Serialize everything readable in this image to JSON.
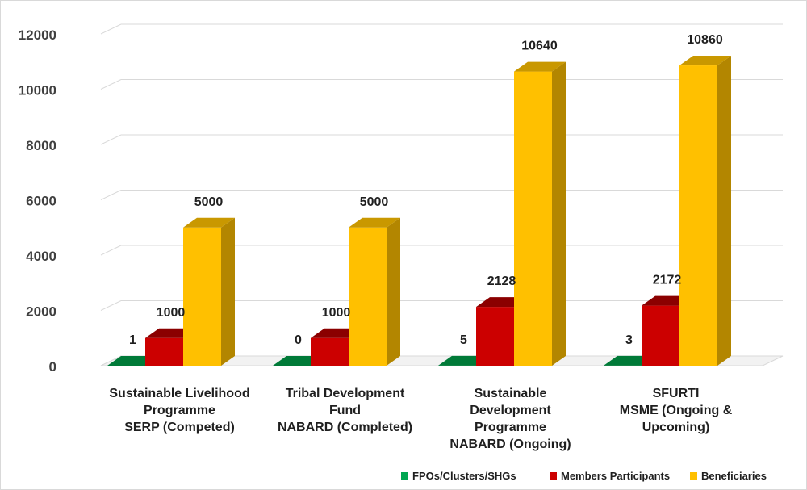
{
  "chart_data": {
    "type": "bar",
    "title": "",
    "xlabel": "",
    "ylabel": "",
    "ylim": [
      0,
      12000
    ],
    "yticks": [
      0,
      2000,
      4000,
      6000,
      8000,
      10000,
      12000
    ],
    "grid": true,
    "legend_position": "bottom-right",
    "categories": [
      [
        "Sustainable Livelihood",
        "Programme",
        "SERP (Competed)"
      ],
      [
        "Tribal Development",
        "Fund",
        "NABARD (Completed)"
      ],
      [
        "Sustainable",
        "Development",
        "Programme",
        "NABARD (Ongoing)"
      ],
      [
        "SFURTI",
        "MSME (Ongoing &",
        "Upcoming)"
      ]
    ],
    "series": [
      {
        "name": "FPOs/Clusters/SHGs",
        "values": [
          1,
          0,
          5,
          3
        ],
        "color": "#00a651",
        "side": "#00843f",
        "top": "#007a38"
      },
      {
        "name": "Members Participants",
        "values": [
          1000,
          1000,
          2128,
          2172
        ],
        "color": "#cc0000",
        "side": "#990000",
        "top": "#8b0000"
      },
      {
        "name": "Beneficiaries",
        "values": [
          5000,
          5000,
          10640,
          10860
        ],
        "color": "#ffc000",
        "side": "#b38600",
        "top": "#c99800"
      }
    ]
  }
}
